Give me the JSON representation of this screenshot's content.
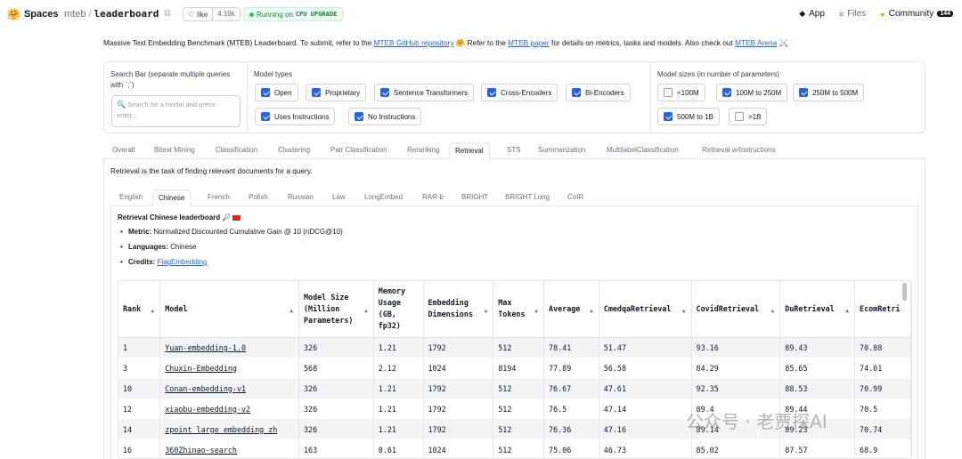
{
  "topbar": {
    "brand": "Spaces",
    "brand_icon": "hf-smiley-icon",
    "owner": "mteb",
    "repo": "leaderboard",
    "like_label": "like",
    "like_count": "4.19k",
    "status_label": "Running on",
    "status_hardware": "CPU UPGRADE",
    "nav": [
      {
        "label": "App",
        "icon": "app-icon",
        "active": true
      },
      {
        "label": "Files",
        "icon": "files-icon",
        "active": false
      },
      {
        "label": "Community",
        "icon": "community-icon",
        "active": false
      }
    ],
    "community_count": "144"
  },
  "intro": {
    "t1": "Massive Text Embedding Benchmark (MTEB) Leaderboard. To submit, refer to the ",
    "link1": "MTEB GitHub repository",
    "t2": " 🤗 Refer to the ",
    "link2": "MTEB paper",
    "t3": " for details on metrics, tasks and models. Also check out ",
    "link3": "MTEB Arena",
    "t4": " ⚔️"
  },
  "filters": {
    "search_label": "Search Bar (separate multiple queries with `;`)",
    "search_placeholder": "Search for a model and press enter...",
    "model_types_label": "Model types",
    "model_types": [
      {
        "label": "Open",
        "checked": true
      },
      {
        "label": "Proprietary",
        "checked": true
      },
      {
        "label": "Sentence Transformers",
        "checked": true
      },
      {
        "label": "Cross-Encoders",
        "checked": true
      },
      {
        "label": "Bi-Encoders",
        "checked": true
      },
      {
        "label": "Uses Instructions",
        "checked": true
      },
      {
        "label": "No Instructions",
        "checked": true
      }
    ],
    "model_sizes_label": "Model sizes (in number of parameters)",
    "model_sizes": [
      {
        "label": "<100M",
        "checked": false
      },
      {
        "label": "100M to 250M",
        "checked": true
      },
      {
        "label": "250M to 500M",
        "checked": true
      },
      {
        "label": "500M to 1B",
        "checked": true
      },
      {
        "label": ">1B",
        "checked": false
      }
    ]
  },
  "main_tabs": [
    "Overall",
    "Bitext Mining",
    "Classification",
    "Clustering",
    "Pair Classification",
    "Reranking",
    "Retrieval",
    "STS",
    "Summarization",
    "MultilabelClassification",
    "Retrieval w/Instructions"
  ],
  "main_tab_active": "Retrieval",
  "description": "Retrieval is the task of finding relevant documents for a query.",
  "sub_tabs": [
    "English",
    "Chinese",
    "French",
    "Polish",
    "Russian",
    "Law",
    "LongEmbed",
    "RAR-b",
    "BRIGHT",
    "BRIGHT Long",
    "CoIR"
  ],
  "sub_tab_active": "Chinese",
  "info": {
    "title": "Retrieval Chinese leaderboard 🔎",
    "metric_key": "Metric:",
    "metric_val": "Normalized Discounted Cumulative Gain @ 10 (nDCG@10)",
    "languages_key": "Languages:",
    "languages_val": "Chinese",
    "credits_key": "Credits:",
    "credits_val": "FlagEmbedding"
  },
  "table": {
    "headers": [
      "Rank",
      "Model",
      "Model Size (Million Parameters)",
      "Memory Usage (GB, fp32)",
      "Embedding Dimensions",
      "Max Tokens",
      "Average",
      "CmedqaRetrieval",
      "CovidRetrieval",
      "DuRetrieval",
      "EcomRetri"
    ],
    "rows": [
      [
        "1",
        "Yuan-embedding-1.0",
        "326",
        "1.21",
        "1792",
        "512",
        "78.41",
        "51.47",
        "93.16",
        "89.43",
        "70.88"
      ],
      [
        "3",
        "Chuxin-Embedding",
        "568",
        "2.12",
        "1024",
        "8194",
        "77.89",
        "56.58",
        "84.29",
        "85.65",
        "74.01"
      ],
      [
        "10",
        "Conan-embedding-v1",
        "326",
        "1.21",
        "1792",
        "512",
        "76.67",
        "47.61",
        "92.35",
        "88.53",
        "70.99"
      ],
      [
        "12",
        "xiaobu-embedding-v2",
        "326",
        "1.21",
        "1792",
        "512",
        "76.5",
        "47.14",
        "89.4",
        "89.44",
        "70.5"
      ],
      [
        "14",
        "zpoint_large_embedding_zh",
        "326",
        "1.21",
        "1792",
        "512",
        "76.36",
        "47.16",
        "89.14",
        "89.23",
        "70.74"
      ],
      [
        "16",
        "360Zhinao-search",
        "163",
        "0.61",
        "1024",
        "512",
        "75.06",
        "46.73",
        "85.02",
        "87.57",
        "68.9"
      ]
    ]
  },
  "watermark": "公众号 · 老贾探AI"
}
